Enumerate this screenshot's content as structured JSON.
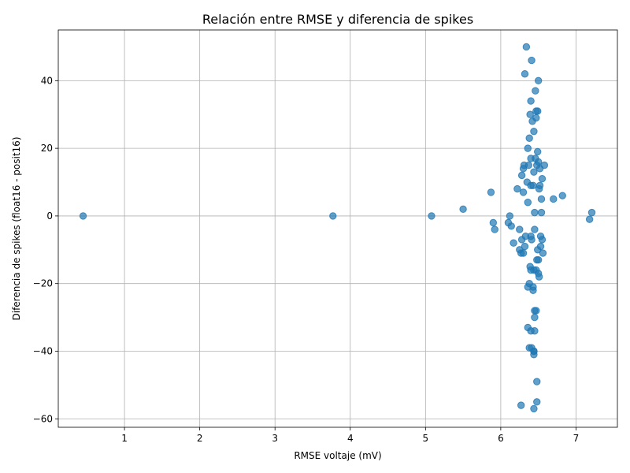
{
  "chart_data": {
    "type": "scatter",
    "title": "Relación entre RMSE y diferencia de spikes",
    "xlabel": "RMSE voltaje (mV)",
    "ylabel": "Diferencia de spikes (float16 - posit16)",
    "xlim": [
      0.12,
      7.55
    ],
    "ylim": [
      -62.5,
      55.0
    ],
    "xticks": [
      "1",
      "2",
      "3",
      "4",
      "5",
      "6",
      "7"
    ],
    "yticks": [
      "−60",
      "−40",
      "−20",
      "0",
      "20",
      "40"
    ],
    "xtick_values": [
      1,
      2,
      3,
      4,
      5,
      6,
      7
    ],
    "ytick_values": [
      -60,
      -40,
      -20,
      0,
      20,
      40
    ],
    "grid": true,
    "color": "#1f77b4",
    "points": [
      {
        "x": 0.45,
        "y": 0
      },
      {
        "x": 3.77,
        "y": 0
      },
      {
        "x": 5.08,
        "y": 0
      },
      {
        "x": 5.5,
        "y": 2
      },
      {
        "x": 5.87,
        "y": 7
      },
      {
        "x": 5.9,
        "y": -2
      },
      {
        "x": 5.92,
        "y": -4
      },
      {
        "x": 6.12,
        "y": 0
      },
      {
        "x": 6.1,
        "y": -2
      },
      {
        "x": 6.14,
        "y": -3
      },
      {
        "x": 6.17,
        "y": -8
      },
      {
        "x": 6.22,
        "y": 8
      },
      {
        "x": 6.25,
        "y": -4
      },
      {
        "x": 6.25,
        "y": -10
      },
      {
        "x": 6.27,
        "y": -11
      },
      {
        "x": 6.28,
        "y": 12
      },
      {
        "x": 6.28,
        "y": -7
      },
      {
        "x": 6.3,
        "y": 7
      },
      {
        "x": 6.3,
        "y": 14
      },
      {
        "x": 6.31,
        "y": 15
      },
      {
        "x": 6.3,
        "y": -11
      },
      {
        "x": 6.32,
        "y": -9
      },
      {
        "x": 6.33,
        "y": -6
      },
      {
        "x": 6.32,
        "y": 42
      },
      {
        "x": 6.34,
        "y": 50
      },
      {
        "x": 6.35,
        "y": 10
      },
      {
        "x": 6.36,
        "y": 20
      },
      {
        "x": 6.36,
        "y": 4
      },
      {
        "x": 6.37,
        "y": 15
      },
      {
        "x": 6.38,
        "y": 23
      },
      {
        "x": 6.38,
        "y": -20
      },
      {
        "x": 6.39,
        "y": 30
      },
      {
        "x": 6.39,
        "y": -15
      },
      {
        "x": 6.4,
        "y": 34
      },
      {
        "x": 6.4,
        "y": 9
      },
      {
        "x": 6.4,
        "y": 17
      },
      {
        "x": 6.4,
        "y": -6
      },
      {
        "x": 6.41,
        "y": -7
      },
      {
        "x": 6.41,
        "y": 46
      },
      {
        "x": 6.42,
        "y": 28
      },
      {
        "x": 6.43,
        "y": 9
      },
      {
        "x": 6.43,
        "y": -21
      },
      {
        "x": 6.43,
        "y": -22
      },
      {
        "x": 6.44,
        "y": 25
      },
      {
        "x": 6.44,
        "y": 13
      },
      {
        "x": 6.44,
        "y": -16
      },
      {
        "x": 6.45,
        "y": 1
      },
      {
        "x": 6.45,
        "y": -4
      },
      {
        "x": 6.45,
        "y": -28
      },
      {
        "x": 6.45,
        "y": -30
      },
      {
        "x": 6.45,
        "y": -34
      },
      {
        "x": 6.46,
        "y": 37
      },
      {
        "x": 6.46,
        "y": 17
      },
      {
        "x": 6.47,
        "y": 31
      },
      {
        "x": 6.47,
        "y": 29
      },
      {
        "x": 6.48,
        "y": 15
      },
      {
        "x": 6.48,
        "y": -13
      },
      {
        "x": 6.48,
        "y": -49
      },
      {
        "x": 6.48,
        "y": -55
      },
      {
        "x": 6.49,
        "y": 31
      },
      {
        "x": 6.49,
        "y": 19
      },
      {
        "x": 6.49,
        "y": -10
      },
      {
        "x": 6.5,
        "y": 16
      },
      {
        "x": 6.5,
        "y": -13
      },
      {
        "x": 6.5,
        "y": 40
      },
      {
        "x": 6.5,
        "y": -17
      },
      {
        "x": 6.51,
        "y": -18
      },
      {
        "x": 6.51,
        "y": 8
      },
      {
        "x": 6.52,
        "y": 14
      },
      {
        "x": 6.52,
        "y": 9
      },
      {
        "x": 6.53,
        "y": -6
      },
      {
        "x": 6.53,
        "y": -9
      },
      {
        "x": 6.54,
        "y": 1
      },
      {
        "x": 6.54,
        "y": 5
      },
      {
        "x": 6.55,
        "y": -7
      },
      {
        "x": 6.55,
        "y": 11
      },
      {
        "x": 6.56,
        "y": -11
      },
      {
        "x": 6.58,
        "y": 15
      },
      {
        "x": 6.7,
        "y": 5
      },
      {
        "x": 6.82,
        "y": 6
      },
      {
        "x": 7.18,
        "y": -1
      },
      {
        "x": 7.21,
        "y": 1
      },
      {
        "x": 6.27,
        "y": -56
      },
      {
        "x": 6.44,
        "y": -57
      },
      {
        "x": 6.36,
        "y": -33
      },
      {
        "x": 6.38,
        "y": -39
      },
      {
        "x": 6.4,
        "y": -34
      },
      {
        "x": 6.41,
        "y": -39
      },
      {
        "x": 6.44,
        "y": -40
      },
      {
        "x": 6.44,
        "y": -41
      },
      {
        "x": 6.44,
        "y": -40
      },
      {
        "x": 6.47,
        "y": -28
      },
      {
        "x": 6.36,
        "y": -21
      },
      {
        "x": 6.4,
        "y": -16
      },
      {
        "x": 6.47,
        "y": -16
      }
    ]
  }
}
